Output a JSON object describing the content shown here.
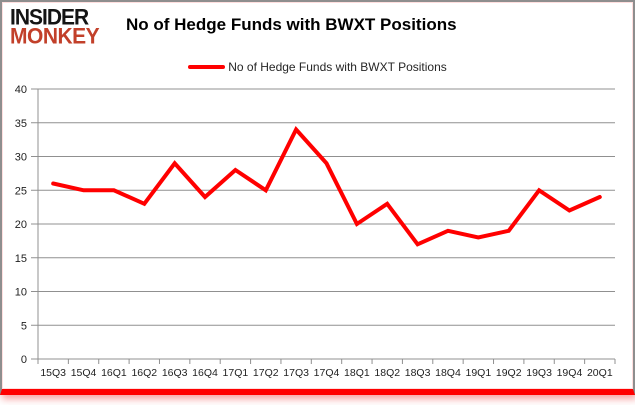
{
  "logo": {
    "line1": "INSIDER",
    "line2": "MONKEY"
  },
  "header": {
    "title": "No of Hedge Funds with BWXT Positions"
  },
  "legend": {
    "label": "No of Hedge Funds with BWXT Positions",
    "line_color": "#ff0000"
  },
  "colors": {
    "series_line": "#ff0000",
    "gridline": "#909090",
    "axis": "#909090",
    "tick_label": "#1f1f1f",
    "logo_accent": "#c2402a",
    "bottom_bar": "#ff0000"
  },
  "chart_data": {
    "type": "line",
    "title": "No of Hedge Funds with BWXT Positions",
    "categories": [
      "15Q3",
      "15Q4",
      "16Q1",
      "16Q2",
      "16Q3",
      "16Q4",
      "17Q1",
      "17Q2",
      "17Q3",
      "17Q4",
      "18Q1",
      "18Q2",
      "18Q3",
      "18Q4",
      "19Q1",
      "19Q2",
      "19Q3",
      "19Q4",
      "20Q1"
    ],
    "series": [
      {
        "name": "No of Hedge Funds with BWXT Positions",
        "color": "#ff0000",
        "values": [
          26,
          25,
          25,
          23,
          29,
          24,
          28,
          25,
          34,
          29,
          20,
          23,
          17,
          19,
          18,
          19,
          25,
          22,
          24
        ]
      }
    ],
    "xlabel": "",
    "ylabel": "",
    "ylim": [
      0,
      40
    ],
    "ytick_step": 5,
    "grid": true,
    "legend_position": "top-center"
  }
}
